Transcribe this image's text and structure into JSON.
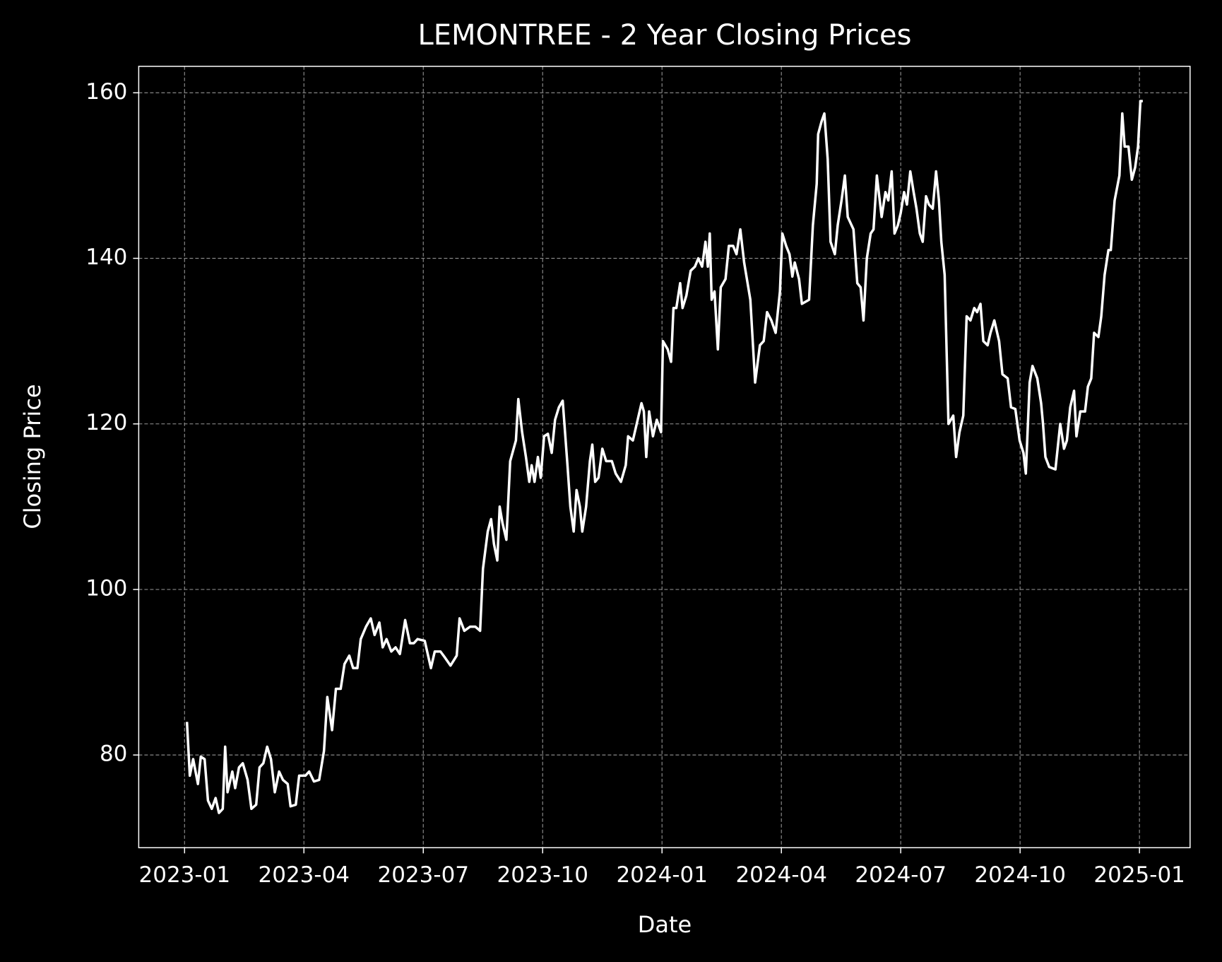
{
  "chart_data": {
    "type": "line",
    "title": "LEMONTREE - 2 Year Closing Prices",
    "x_label": "Date",
    "y_label": "Closing Price",
    "grid": true,
    "xlim": [
      2022.904,
      2025.106
    ],
    "ylim": [
      68.8,
      163.2
    ],
    "xticks": [
      {
        "value": 2023,
        "label": "2023-01"
      },
      {
        "value": 2023.25,
        "label": "2023-04"
      },
      {
        "value": 2023.5,
        "label": "2023-07"
      },
      {
        "value": 2023.75,
        "label": "2023-10"
      },
      {
        "value": 2024,
        "label": "2024-01"
      },
      {
        "value": 2024.25,
        "label": "2024-04"
      },
      {
        "value": 2024.5,
        "label": "2024-07"
      },
      {
        "value": 2024.75,
        "label": "2024-10"
      },
      {
        "value": 2025,
        "label": "2025-01"
      }
    ],
    "yticks": [
      80,
      100,
      120,
      140,
      160
    ],
    "x": [
      2023.005,
      2023.011,
      2023.018,
      2023.028,
      2023.034,
      2023.042,
      2023.049,
      2023.057,
      2023.065,
      2023.072,
      2023.08,
      2023.085,
      2023.09,
      2023.1,
      2023.106,
      2023.114,
      2023.122,
      2023.132,
      2023.14,
      2023.15,
      2023.157,
      2023.165,
      2023.173,
      2023.181,
      2023.189,
      2023.198,
      2023.206,
      2023.216,
      2023.222,
      2023.233,
      2023.24,
      2023.253,
      2023.261,
      2023.271,
      2023.282,
      2023.292,
      2023.299,
      2023.309,
      2023.317,
      2023.327,
      2023.335,
      2023.345,
      2023.353,
      2023.362,
      2023.369,
      2023.38,
      2023.39,
      2023.398,
      2023.408,
      2023.415,
      2023.423,
      2023.433,
      2023.442,
      2023.451,
      2023.462,
      2023.472,
      2023.48,
      2023.488,
      2023.503,
      2023.516,
      2023.524,
      2023.536,
      2023.545,
      2023.557,
      2023.57,
      2023.576,
      2023.586,
      2023.598,
      2023.609,
      2023.619,
      2023.625,
      2023.635,
      2023.642,
      2023.648,
      2023.655,
      2023.66,
      2023.666,
      2023.674,
      2023.682,
      2023.694,
      2023.699,
      2023.707,
      2023.715,
      2023.722,
      2023.727,
      2023.733,
      2023.74,
      2023.746,
      2023.753,
      2023.761,
      2023.769,
      2023.776,
      2023.784,
      2023.792,
      2023.802,
      2023.808,
      2023.815,
      2023.821,
      2023.828,
      2023.833,
      2023.841,
      2023.849,
      2023.854,
      2023.86,
      2023.867,
      2023.875,
      2023.883,
      2023.895,
      2023.903,
      2023.914,
      2023.924,
      2023.929,
      2023.939,
      2023.949,
      2023.957,
      2023.962,
      2023.967,
      2023.973,
      2023.981,
      2023.989,
      2023.998,
      2024.002,
      2024.012,
      2024.019,
      2024.024,
      2024.03,
      2024.038,
      2024.043,
      2024.051,
      2024.06,
      2024.069,
      2024.076,
      2024.084,
      2024.091,
      2024.096,
      2024.1,
      2024.104,
      2024.11,
      2024.117,
      2024.123,
      2024.133,
      2024.14,
      2024.149,
      2024.156,
      2024.164,
      2024.172,
      2024.185,
      2024.195,
      2024.205,
      2024.213,
      2024.22,
      2024.229,
      2024.238,
      2024.247,
      2024.252,
      2024.26,
      2024.267,
      2024.273,
      2024.278,
      2024.287,
      2024.293,
      2024.308,
      2024.316,
      2024.324,
      2024.327,
      2024.334,
      2024.34,
      2024.347,
      2024.353,
      2024.362,
      2024.368,
      2024.376,
      2024.383,
      2024.389,
      2024.401,
      2024.409,
      2024.416,
      2024.422,
      2024.429,
      2024.437,
      2024.443,
      2024.45,
      2024.46,
      2024.468,
      2024.474,
      2024.481,
      2024.487,
      2024.494,
      2024.5,
      2024.507,
      2024.513,
      2024.52,
      2024.527,
      2024.533,
      2024.54,
      2024.546,
      2024.553,
      2024.559,
      2024.567,
      2024.574,
      2024.58,
      2024.585,
      2024.592,
      2024.6,
      2024.61,
      2024.616,
      2024.623,
      2024.631,
      2024.638,
      2024.646,
      2024.654,
      2024.66,
      2024.667,
      2024.673,
      2024.682,
      2024.688,
      2024.696,
      2024.706,
      2024.713,
      2024.724,
      2024.731,
      2024.74,
      2024.749,
      2024.757,
      2024.762,
      2024.77,
      2024.776,
      2024.786,
      2024.794,
      2024.798,
      2024.803,
      2024.811,
      2024.824,
      2024.834,
      2024.842,
      2024.848,
      2024.855,
      2024.863,
      2024.868,
      2024.876,
      2024.886,
      2024.892,
      2024.899,
      2024.905,
      2024.914,
      2024.92,
      2024.927,
      2024.935,
      2024.94,
      2024.948,
      2024.958,
      2024.964,
      2024.969,
      2024.977,
      2024.984,
      2024.991,
      2024.997,
      2025.002,
      2025.007
    ],
    "series": [
      {
        "name": "LEMONTREE",
        "color": "#ffffff",
        "values": [
          84,
          77.5,
          79.5,
          76.5,
          79.8,
          79.5,
          74.5,
          73.5,
          74.8,
          73,
          73.5,
          81,
          75.5,
          78,
          76,
          78.5,
          79,
          77,
          73.5,
          74,
          78.5,
          79,
          81,
          79.5,
          75.5,
          78,
          77,
          76.5,
          73.8,
          74,
          77.5,
          77.5,
          78,
          76.8,
          77,
          80.5,
          87,
          83,
          88,
          88,
          91,
          92,
          90.5,
          90.5,
          94,
          95.5,
          96.5,
          94.5,
          96,
          93,
          94,
          92.5,
          93,
          92.2,
          96.3,
          93.5,
          93.5,
          94,
          93.8,
          90.5,
          92.5,
          92.5,
          91.8,
          90.8,
          92,
          96.5,
          95,
          95.5,
          95.5,
          95,
          102.5,
          107,
          108.5,
          105.5,
          103.5,
          110,
          108,
          106,
          115.5,
          118,
          123,
          119,
          116,
          113,
          115,
          113,
          116,
          113.5,
          118.5,
          118.8,
          116.5,
          120.5,
          122,
          122.8,
          115,
          110,
          107,
          112,
          110,
          107,
          110,
          115.5,
          117.5,
          113,
          113.5,
          117,
          115.5,
          115.5,
          114,
          113,
          115,
          118.5,
          118,
          120.5,
          122.5,
          121.5,
          116,
          121.5,
          118.5,
          120.5,
          119,
          130,
          129,
          127.5,
          134,
          134,
          137,
          134,
          135.5,
          138.5,
          139,
          140,
          139,
          142,
          139,
          143,
          135,
          136,
          129,
          136.5,
          137.5,
          141.5,
          141.5,
          140.5,
          143.5,
          139.5,
          135,
          125,
          129.5,
          130,
          133.5,
          132.5,
          131,
          136,
          143,
          141.5,
          140.5,
          137.8,
          139.5,
          137.5,
          134.5,
          135,
          144,
          149,
          155,
          156.5,
          157.5,
          152,
          142,
          140.5,
          144,
          147,
          150,
          145,
          143.5,
          137,
          136.5,
          132.5,
          140,
          143,
          143.5,
          150,
          145,
          148,
          147,
          150.5,
          143,
          144,
          145.5,
          148,
          146.5,
          150.5,
          148,
          146,
          143,
          142,
          147.5,
          146.5,
          146,
          150.5,
          147,
          142,
          138,
          120,
          121,
          116,
          119,
          121,
          133,
          132.5,
          134,
          133.5,
          134.5,
          130,
          129.5,
          131,
          132.5,
          130,
          126,
          125.5,
          122,
          121.8,
          118,
          116.5,
          114,
          125,
          127,
          125.5,
          122.5,
          120,
          116,
          114.8,
          114.5,
          120,
          117,
          118,
          122,
          124,
          118.5,
          121.5,
          121.5,
          124.5,
          125.5,
          131,
          130.5,
          133,
          138,
          141,
          141,
          147,
          150,
          157.5,
          153.5,
          153.5,
          149.5,
          151,
          153.5,
          159,
          159
        ]
      }
    ]
  }
}
